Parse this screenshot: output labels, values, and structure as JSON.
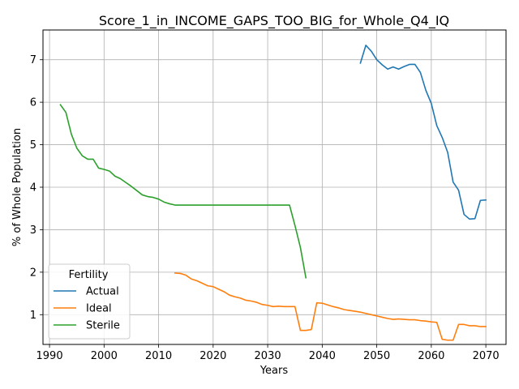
{
  "chart_data": {
    "type": "line",
    "title": "Score_1_in_INCOME_GAPS_TOO_BIG_for_Whole_Q4_IQ",
    "xlabel": "Years",
    "ylabel": "% of Whole Population",
    "xlim": [
      1988.8,
      2073.7
    ],
    "ylim": [
      0.3,
      7.7
    ],
    "xticks": [
      1990,
      2000,
      2010,
      2020,
      2030,
      2040,
      2050,
      2060,
      2070
    ],
    "yticks": [
      1,
      2,
      3,
      4,
      5,
      6,
      7
    ],
    "grid": true,
    "legend": {
      "title": "Fertility",
      "position": "lower-left"
    },
    "series": [
      {
        "name": "Actual",
        "color": "#1f77b4",
        "x": [
          2047,
          2048,
          2049,
          2050,
          2051,
          2052,
          2053,
          2054,
          2055,
          2056,
          2057,
          2058,
          2059,
          2060,
          2061,
          2062,
          2063,
          2064,
          2065,
          2066,
          2067,
          2068,
          2069,
          2070
        ],
        "y": [
          6.92,
          7.34,
          7.2,
          7.0,
          6.88,
          6.78,
          6.83,
          6.78,
          6.84,
          6.89,
          6.89,
          6.7,
          6.28,
          5.97,
          5.45,
          5.17,
          4.82,
          4.12,
          3.93,
          3.36,
          3.25,
          3.26,
          3.69,
          3.7
        ]
      },
      {
        "name": "Ideal",
        "color": "#ff7f0e",
        "x": [
          2013,
          2014,
          2015,
          2016,
          2017,
          2018,
          2019,
          2020,
          2021,
          2022,
          2023,
          2024,
          2025,
          2026,
          2027,
          2028,
          2029,
          2030,
          2031,
          2032,
          2033,
          2034,
          2035,
          2036,
          2037,
          2038,
          2039,
          2040,
          2041,
          2042,
          2043,
          2044,
          2045,
          2046,
          2047,
          2048,
          2049,
          2050,
          2051,
          2052,
          2053,
          2054,
          2055,
          2056,
          2057,
          2058,
          2059,
          2060,
          2061,
          2062,
          2063,
          2064,
          2065,
          2066,
          2067,
          2068,
          2069,
          2070
        ],
        "y": [
          1.98,
          1.97,
          1.93,
          1.84,
          1.8,
          1.74,
          1.68,
          1.66,
          1.6,
          1.54,
          1.46,
          1.42,
          1.39,
          1.34,
          1.32,
          1.29,
          1.24,
          1.22,
          1.19,
          1.2,
          1.19,
          1.19,
          1.19,
          0.63,
          0.63,
          0.65,
          1.28,
          1.27,
          1.23,
          1.19,
          1.16,
          1.12,
          1.1,
          1.08,
          1.06,
          1.03,
          1.0,
          0.97,
          0.94,
          0.91,
          0.89,
          0.9,
          0.89,
          0.88,
          0.88,
          0.86,
          0.85,
          0.83,
          0.82,
          0.42,
          0.4,
          0.4,
          0.77,
          0.77,
          0.74,
          0.74,
          0.72,
          0.72
        ]
      },
      {
        "name": "Sterile",
        "color": "#2ca02c",
        "x": [
          1992,
          1993,
          1994,
          1995,
          1996,
          1997,
          1998,
          1999,
          2000,
          2001,
          2002,
          2003,
          2004,
          2005,
          2006,
          2007,
          2008,
          2009,
          2010,
          2011,
          2012,
          2013,
          2014,
          2015,
          2016,
          2017,
          2018,
          2019,
          2020,
          2021,
          2022,
          2023,
          2024,
          2025,
          2026,
          2027,
          2028,
          2029,
          2030,
          2031,
          2032,
          2033,
          2034,
          2035,
          2036,
          2037
        ],
        "y": [
          5.94,
          5.76,
          5.25,
          4.92,
          4.74,
          4.66,
          4.66,
          4.45,
          4.42,
          4.38,
          4.26,
          4.2,
          4.11,
          4.02,
          3.92,
          3.82,
          3.78,
          3.76,
          3.72,
          3.65,
          3.61,
          3.58,
          3.58,
          3.58,
          3.58,
          3.58,
          3.58,
          3.58,
          3.58,
          3.58,
          3.58,
          3.58,
          3.58,
          3.58,
          3.58,
          3.58,
          3.58,
          3.58,
          3.58,
          3.58,
          3.58,
          3.58,
          3.58,
          3.1,
          2.58,
          1.87
        ]
      }
    ]
  }
}
